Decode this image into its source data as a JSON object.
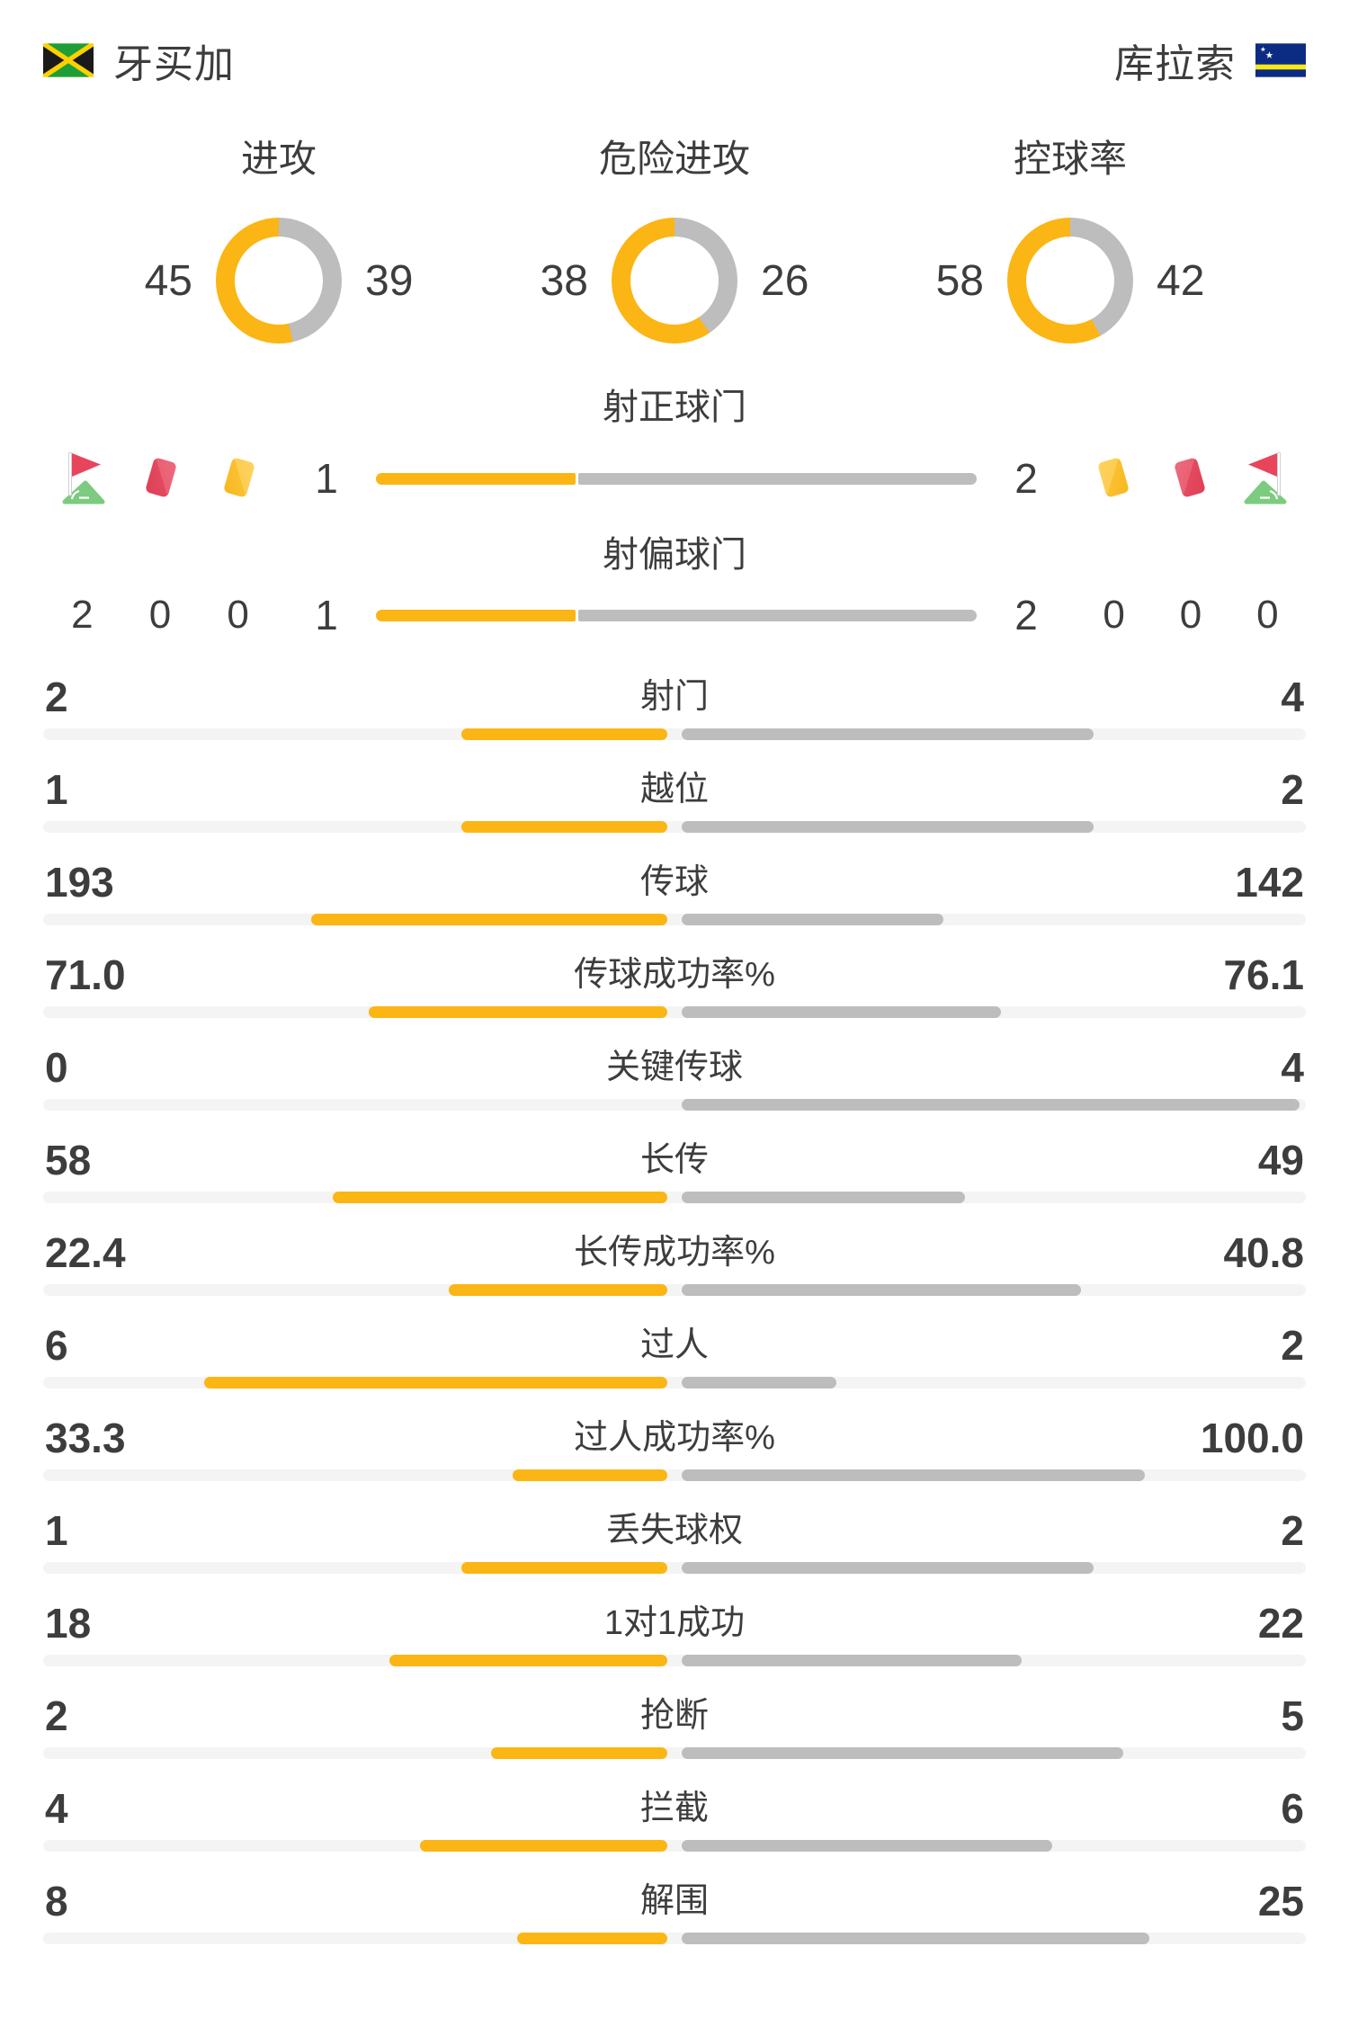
{
  "colors": {
    "home_accent": "#FBB514",
    "away_accent": "#BDBDBD",
    "bar_track": "#F4F4F4",
    "text": "#3D3D3D",
    "red_card": "#E24A60",
    "yellow_card": "#FBC433",
    "corner_flag_red": "#E8445C",
    "corner_flag_green": "#7CCB80"
  },
  "header": {
    "home": {
      "name": "牙买加",
      "flag_icon": "jamaica-flag-icon"
    },
    "away": {
      "name": "库拉索",
      "flag_icon": "curacao-flag-icon"
    }
  },
  "donuts": [
    {
      "label": "进攻",
      "home": "45",
      "away": "39"
    },
    {
      "label": "危险进攻",
      "home": "38",
      "away": "26"
    },
    {
      "label": "控球率",
      "home": "58",
      "away": "42"
    }
  ],
  "shots": [
    {
      "label": "射正球门",
      "home": "1",
      "away": "2"
    },
    {
      "label": "射偏球门",
      "home": "1",
      "away": "2"
    }
  ],
  "discipline": {
    "icons": [
      "corner-flag-icon",
      "red-card-icon",
      "yellow-card-icon"
    ],
    "home": {
      "corner": "2",
      "red": "0",
      "yellow": "0"
    },
    "away": {
      "yellow": "0",
      "red": "0",
      "corner": "0"
    }
  },
  "stats": [
    {
      "label": "射门",
      "home": "2",
      "away": "4"
    },
    {
      "label": "越位",
      "home": "1",
      "away": "2"
    },
    {
      "label": "传球",
      "home": "193",
      "away": "142"
    },
    {
      "label": "传球成功率%",
      "home": "71.0",
      "away": "76.1"
    },
    {
      "label": "关键传球",
      "home": "0",
      "away": "4"
    },
    {
      "label": "长传",
      "home": "58",
      "away": "49"
    },
    {
      "label": "长传成功率%",
      "home": "22.4",
      "away": "40.8"
    },
    {
      "label": "过人",
      "home": "6",
      "away": "2"
    },
    {
      "label": "过人成功率%",
      "home": "33.3",
      "away": "100.0"
    },
    {
      "label": "丢失球权",
      "home": "1",
      "away": "2"
    },
    {
      "label": "1对1成功",
      "home": "18",
      "away": "22"
    },
    {
      "label": "抢断",
      "home": "2",
      "away": "5"
    },
    {
      "label": "拦截",
      "home": "4",
      "away": "6"
    },
    {
      "label": "解围",
      "home": "8",
      "away": "25"
    }
  ],
  "chart_data": [
    {
      "type": "pie",
      "title": "进攻 / 危险进攻 / 控球率 donuts",
      "series": [
        {
          "name": "进攻",
          "values": [
            45,
            39
          ]
        },
        {
          "name": "危险进攻",
          "values": [
            38,
            26
          ]
        },
        {
          "name": "控球率",
          "values": [
            58,
            42
          ]
        }
      ],
      "legend": [
        "牙买加",
        "库拉索"
      ]
    },
    {
      "type": "bar",
      "title": "比赛统计",
      "categories": [
        "射正球门",
        "射偏球门",
        "射门",
        "越位",
        "传球",
        "传球成功率%",
        "关键传球",
        "长传",
        "长传成功率%",
        "过人",
        "过人成功率%",
        "丢失球权",
        "1对1成功",
        "抢断",
        "拦截",
        "解围",
        "角球",
        "红牌",
        "黄牌"
      ],
      "series": [
        {
          "name": "牙买加",
          "values": [
            1,
            1,
            2,
            1,
            193,
            71.0,
            0,
            58,
            22.4,
            6,
            33.3,
            1,
            18,
            2,
            4,
            8,
            2,
            0,
            0
          ]
        },
        {
          "name": "库拉索",
          "values": [
            2,
            2,
            4,
            2,
            142,
            76.1,
            4,
            49,
            40.8,
            2,
            100.0,
            2,
            22,
            5,
            6,
            25,
            0,
            0,
            0
          ]
        }
      ]
    }
  ]
}
